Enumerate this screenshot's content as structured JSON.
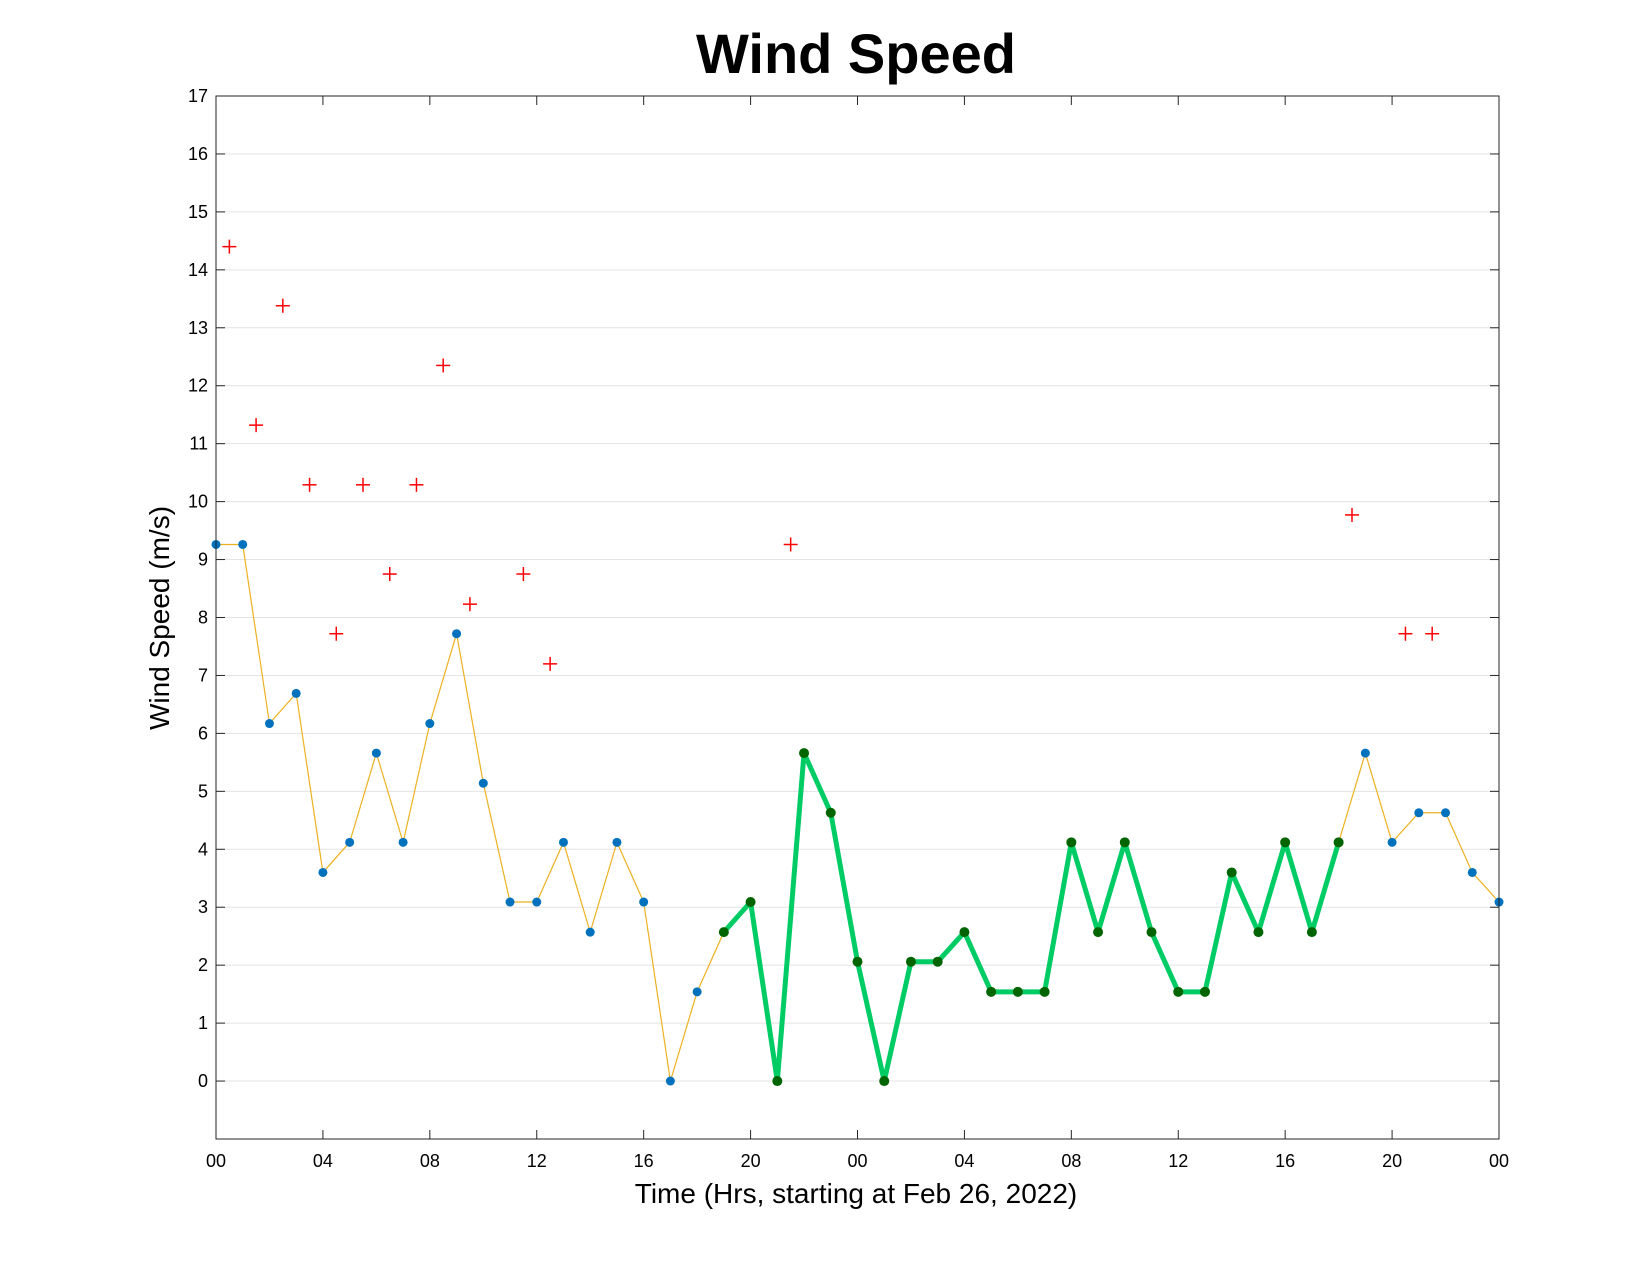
{
  "chart_data": {
    "type": "line",
    "title": "Wind Speed",
    "xlabel": "Time (Hrs, starting at Feb 26, 2022)",
    "ylabel": "Wind Speed (m/s)",
    "xlim": [
      0,
      48
    ],
    "ylim": [
      -1,
      17
    ],
    "x_unit": "hours",
    "xticks": [
      0,
      4,
      8,
      12,
      16,
      20,
      24,
      28,
      32,
      36,
      40,
      44,
      48
    ],
    "xtick_labels": [
      "00",
      "04",
      "08",
      "12",
      "16",
      "20",
      "00",
      "04",
      "08",
      "12",
      "16",
      "20",
      "00"
    ],
    "yticks": [
      0,
      1,
      2,
      3,
      4,
      5,
      6,
      7,
      8,
      9,
      10,
      11,
      12,
      13,
      14,
      15,
      16,
      17
    ],
    "grid": true,
    "series": [
      {
        "style": "thin orange line with blue dot markers",
        "color": "#EDB120",
        "marker_color": "#0072BD",
        "x": [
          0,
          1,
          2,
          3,
          4,
          5,
          6,
          7,
          8,
          9,
          10,
          11,
          12,
          13,
          14,
          15,
          16,
          17,
          18,
          19,
          20,
          21,
          22,
          23,
          24,
          25,
          26,
          27,
          28,
          29,
          30,
          31,
          32,
          33,
          34,
          35,
          36,
          37,
          38,
          39,
          40,
          41,
          42,
          43,
          44,
          45,
          46,
          47,
          48
        ],
        "values": [
          9.26,
          9.26,
          6.17,
          6.69,
          3.6,
          4.12,
          5.66,
          4.12,
          6.17,
          7.72,
          5.14,
          3.09,
          3.09,
          4.12,
          2.57,
          4.12,
          3.09,
          0,
          1.54,
          2.57,
          3.09,
          0,
          5.66,
          4.63,
          2.06,
          0,
          2.06,
          2.06,
          2.57,
          1.54,
          1.54,
          1.54,
          4.12,
          2.57,
          4.12,
          2.57,
          1.54,
          1.54,
          3.6,
          2.57,
          4.12,
          2.57,
          4.12,
          5.66,
          4.12,
          4.63,
          4.63,
          3.6,
          3.09
        ]
      },
      {
        "style": "thick green line with dark green markers",
        "color": "#00CC66",
        "marker_color": "#006400",
        "x": [
          19,
          20,
          21,
          22,
          23,
          24,
          25,
          26,
          27,
          28,
          29,
          30,
          31,
          32,
          33,
          34,
          35,
          36,
          37,
          38,
          39,
          40,
          41,
          42
        ],
        "values": [
          2.57,
          3.09,
          0,
          5.66,
          4.63,
          2.06,
          0,
          2.06,
          2.06,
          2.57,
          1.54,
          1.54,
          1.54,
          4.12,
          2.57,
          4.12,
          2.57,
          1.54,
          1.54,
          3.6,
          2.57,
          4.12,
          2.57,
          4.12
        ]
      },
      {
        "style": "red plus markers (gusts)",
        "color": "#FF0000",
        "x": [
          0.5,
          1.5,
          2.5,
          3.5,
          4.5,
          5.5,
          6.5,
          7.5,
          8.5,
          9.5,
          11.5,
          12.5,
          21.5,
          42.5,
          44.5,
          45.5
        ],
        "values": [
          14.4,
          11.32,
          13.38,
          10.29,
          7.72,
          10.29,
          8.75,
          10.29,
          12.35,
          8.23,
          8.75,
          7.2,
          9.26,
          9.77,
          7.72,
          7.72
        ]
      }
    ]
  }
}
